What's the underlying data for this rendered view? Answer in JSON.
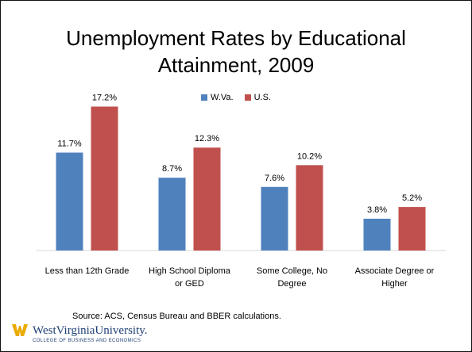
{
  "chart_data": {
    "type": "bar",
    "title": "Unemployment Rates by Educational Attainment, 2009",
    "title_lines": [
      "Unemployment Rates by Educational",
      "Attainment, 2009"
    ],
    "categories": [
      [
        "Less than 12th Grade"
      ],
      [
        "High School Diploma",
        "or GED"
      ],
      [
        "Some College, No",
        "Degree"
      ],
      [
        "Associate Degree or",
        "Higher"
      ]
    ],
    "series": [
      {
        "name": "W.Va.",
        "color": "#4f81bd",
        "values": [
          11.7,
          8.7,
          7.6,
          3.8
        ],
        "labels": [
          "11.7%",
          "8.7%",
          "7.6%",
          "3.8%"
        ]
      },
      {
        "name": "U.S.",
        "color": "#c0504d",
        "values": [
          17.2,
          12.3,
          10.2,
          5.2
        ],
        "labels": [
          "17.2%",
          "12.3%",
          "10.2%",
          "5.2%"
        ]
      }
    ],
    "xlabel": "",
    "ylabel": "",
    "ylim": [
      0,
      18
    ],
    "grid": false,
    "legend_position": "top"
  },
  "footer": {
    "source": "Source: ACS, Census Bureau and BBER calculations."
  },
  "logo": {
    "name": "WestVirginiaUniversity.",
    "subtitle": "COLLEGE OF BUSINESS AND ECONOMICS",
    "icon": "wvu-flying-wv-logo",
    "gold": "#eaaa00",
    "blue": "#1f3f74"
  }
}
